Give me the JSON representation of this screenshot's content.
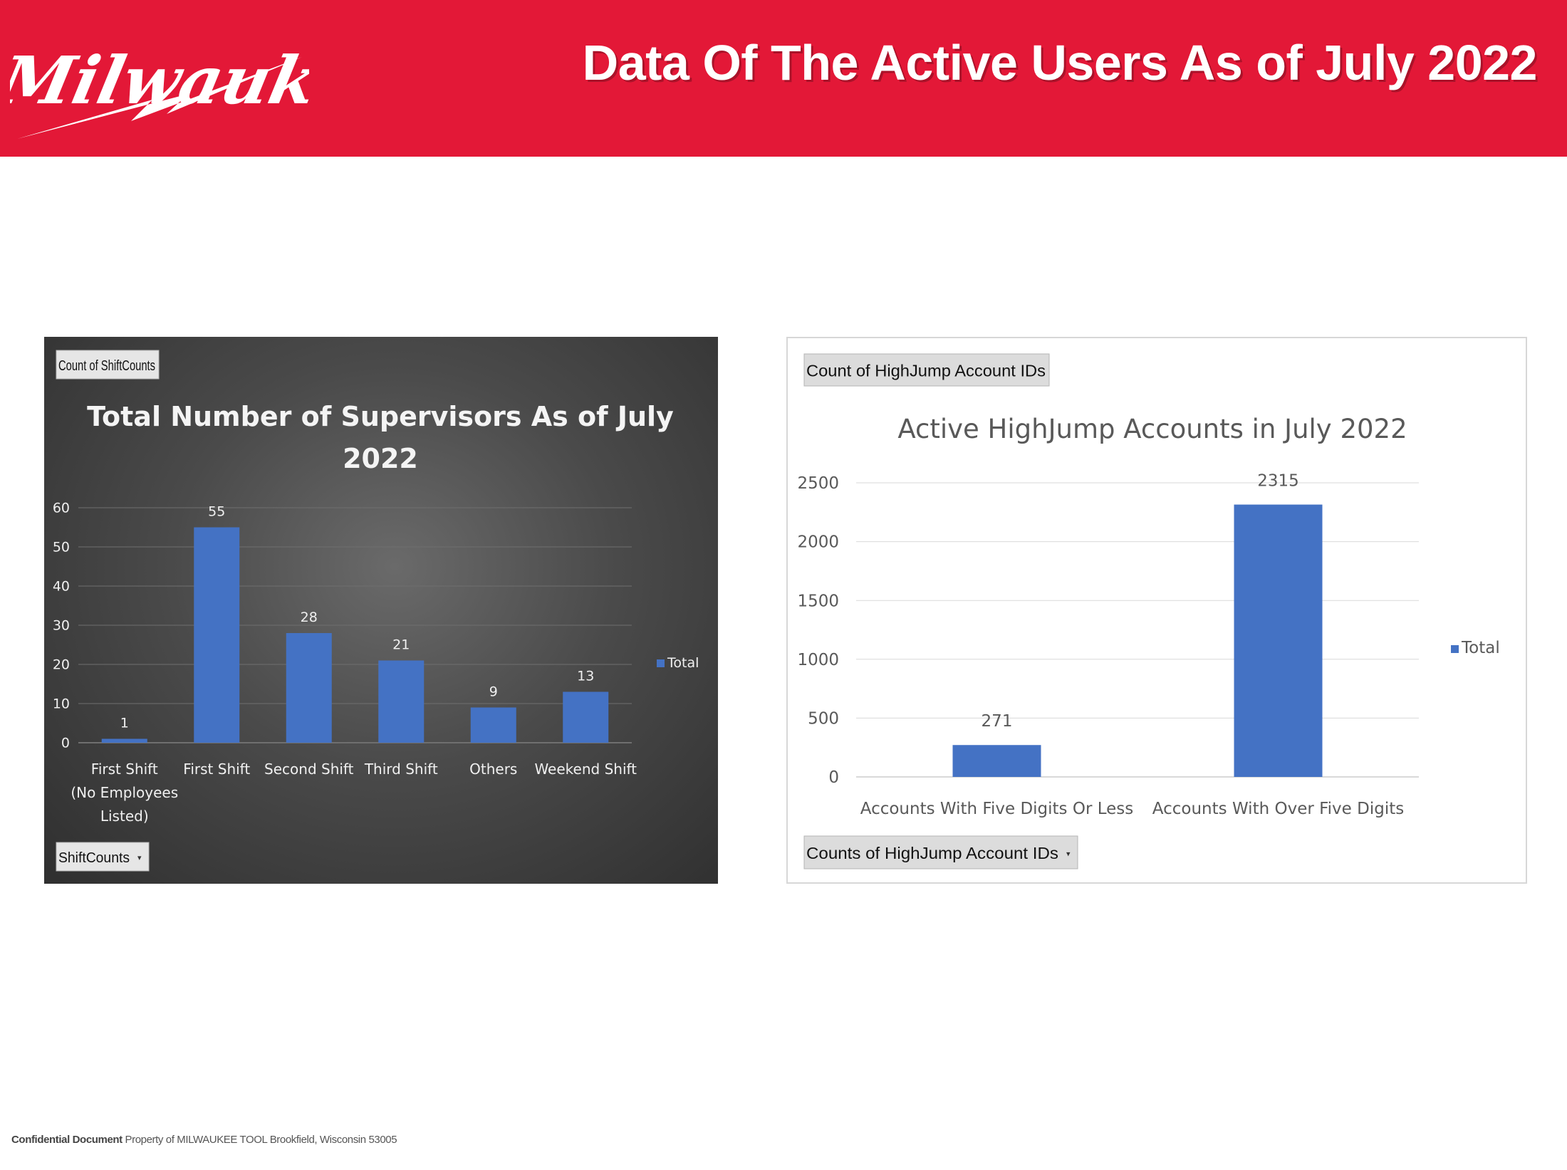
{
  "header": {
    "logo_text": "Milwaukee",
    "title": "Data Of The Active Users As of July 2022"
  },
  "footer": {
    "bold": "Confidential Document",
    "rest": " Property of MILWAUKEE TOOL Brookfield, Wisconsin 53005"
  },
  "colors": {
    "brand_red": "#e31837",
    "bar_blue": "#4472c4"
  },
  "chart_data": [
    {
      "type": "bar",
      "filter_button": "Count of ShiftCounts",
      "axis_field_button": "ShiftCounts",
      "title": "Total Number of Supervisors As of July 2022",
      "categories": [
        "First Shift (No Employees Listed)",
        "First Shift",
        "Second Shift",
        "Third Shift",
        "Others",
        "Weekend Shift"
      ],
      "series": [
        {
          "name": "Total",
          "values": [
            1,
            55,
            28,
            21,
            9,
            13
          ]
        }
      ],
      "ylim": [
        0,
        60
      ],
      "yticks": [
        0,
        10,
        20,
        30,
        40,
        50,
        60
      ],
      "grid": true,
      "legend": "right",
      "data_labels": true
    },
    {
      "type": "bar",
      "filter_button": "Count of HighJump Account IDs",
      "axis_field_button": "Counts of HighJump Account IDs",
      "title": "Active HighJump Accounts in July 2022",
      "categories": [
        "Accounts With Five Digits Or Less",
        "Accounts With Over Five Digits"
      ],
      "series": [
        {
          "name": "Total",
          "values": [
            271,
            2315
          ]
        }
      ],
      "ylim": [
        0,
        2500
      ],
      "yticks": [
        0,
        500,
        1000,
        1500,
        2000,
        2500
      ],
      "grid": true,
      "legend": "right",
      "data_labels": true
    }
  ]
}
